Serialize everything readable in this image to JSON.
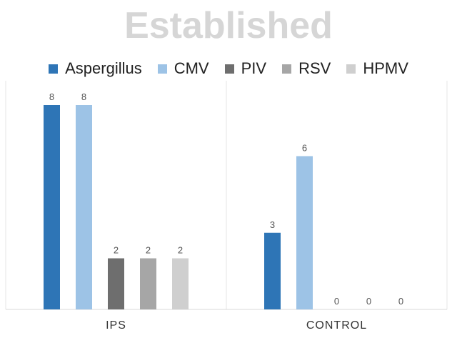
{
  "chart_data": {
    "type": "bar",
    "title": "Established",
    "categories": [
      "IPS",
      "CONTROL"
    ],
    "series": [
      {
        "name": "Aspergillus",
        "color": "#2e75b6",
        "values": [
          8,
          3
        ]
      },
      {
        "name": "CMV",
        "color": "#9dc3e6",
        "values": [
          8,
          6
        ]
      },
      {
        "name": "PIV",
        "color": "#6e6e6e",
        "values": [
          2,
          0
        ]
      },
      {
        "name": "RSV",
        "color": "#a6a6a6",
        "values": [
          2,
          0
        ]
      },
      {
        "name": "HPMV",
        "color": "#cfcfcf",
        "values": [
          2,
          0
        ]
      }
    ],
    "xlabel": "",
    "ylabel": "",
    "ylim": [
      0,
      10
    ],
    "grid": false,
    "legend_position": "top",
    "data_labels": true
  }
}
